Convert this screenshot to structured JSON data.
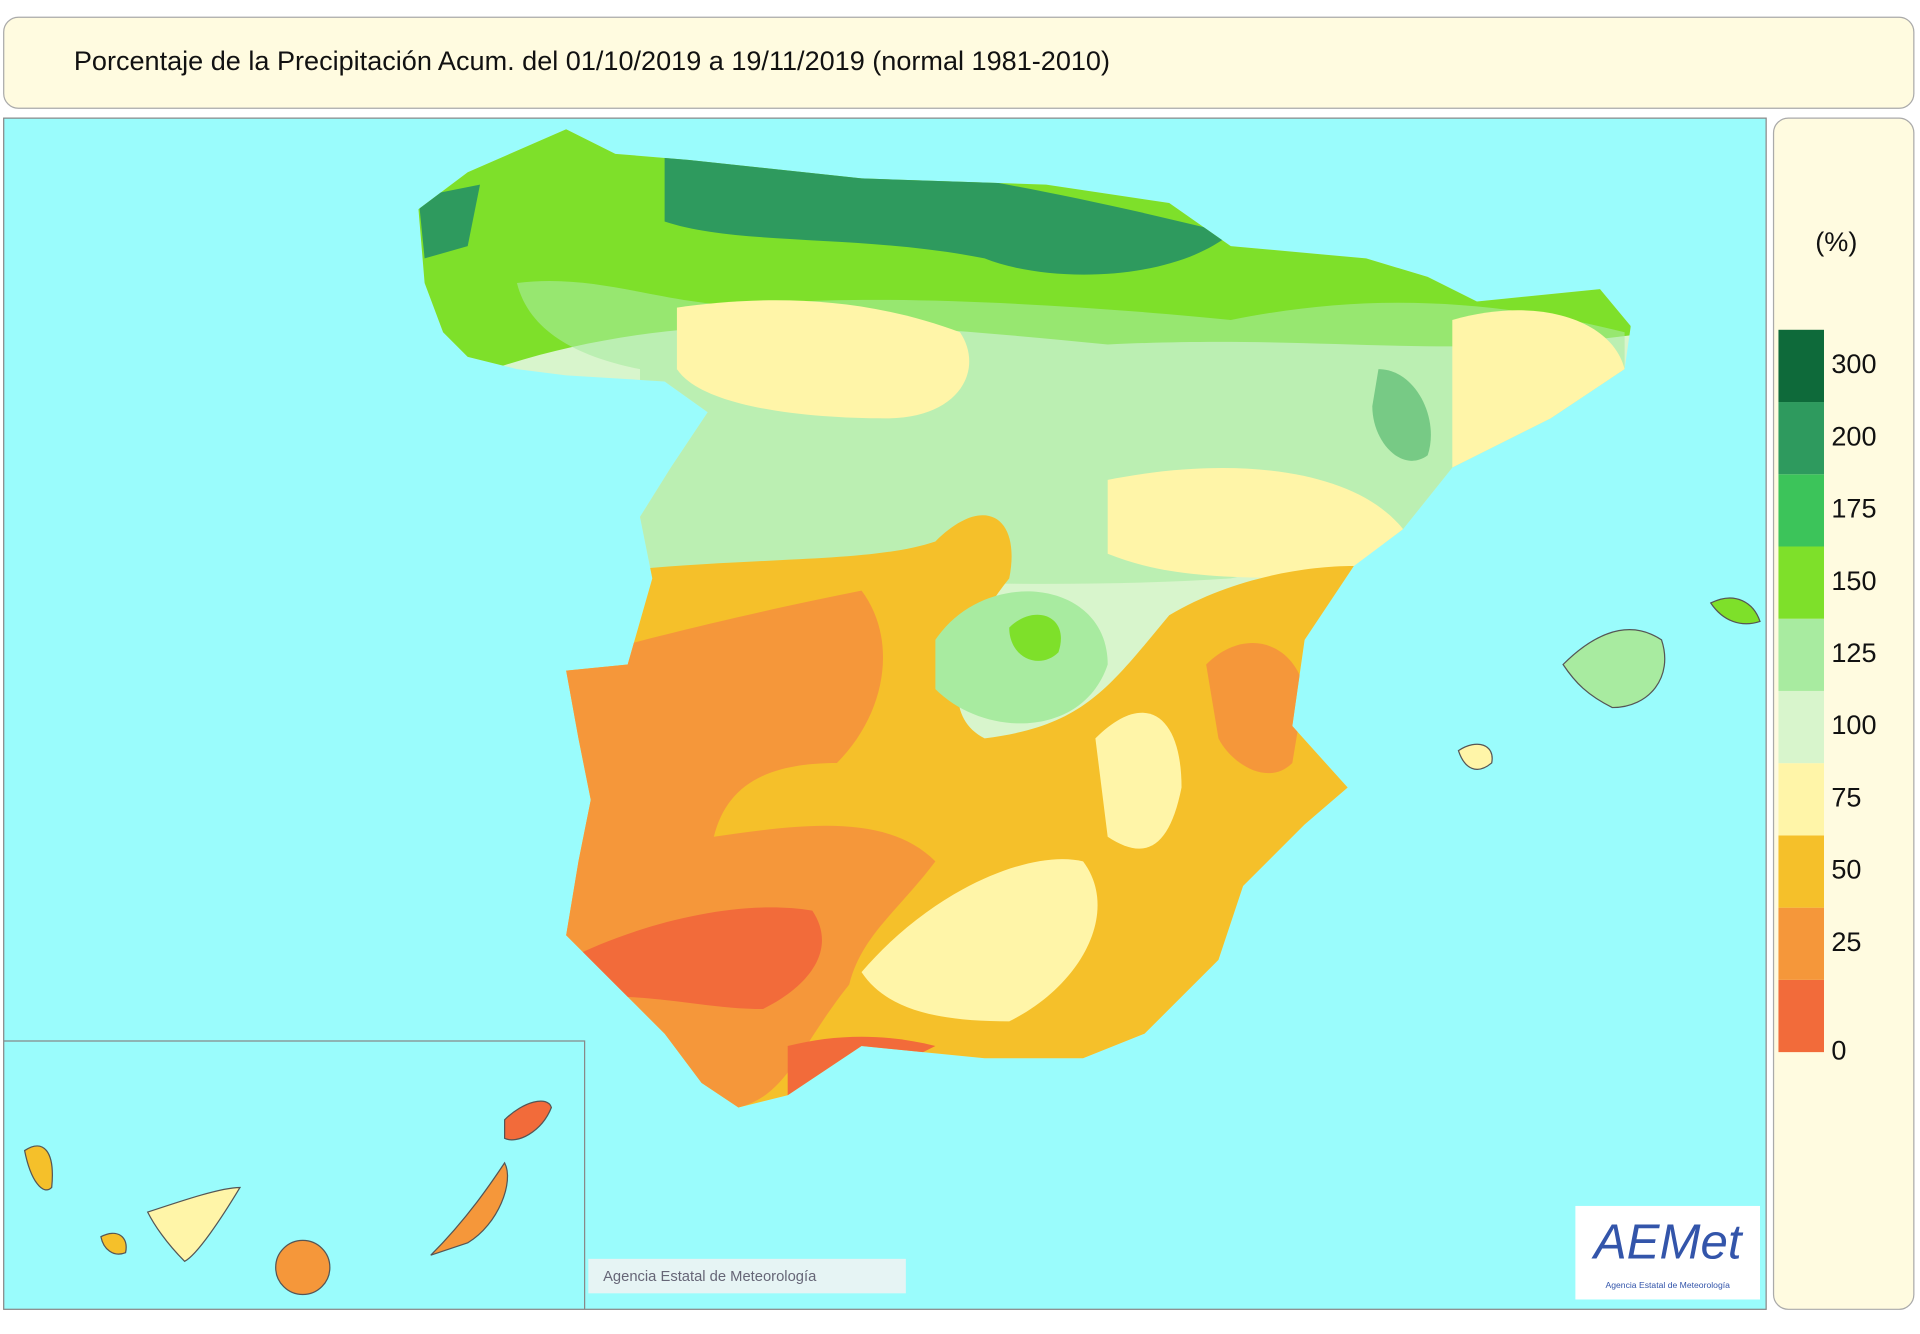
{
  "header": {
    "title": "Porcentaje de la Precipitación Acum. del 01/10/2019 a  19/11/2019  (normal 1981-2010)"
  },
  "legend": {
    "unit": "(%)",
    "thresholds": [
      0,
      25,
      50,
      75,
      100,
      125,
      150,
      175,
      200,
      300
    ],
    "colors": [
      "#f26b3a",
      "#f5973a",
      "#f5c02a",
      "#fff5a8",
      "#d8f5cc",
      "#a8eba0",
      "#7ee02a",
      "#3cc45a",
      "#2e9a5e",
      "#0e6a3a"
    ]
  },
  "credit": "Agencia Estatal de Meteorología",
  "logo": {
    "text": "AEMet",
    "subtitle": "Agencia Estatal de Meteorología"
  }
}
